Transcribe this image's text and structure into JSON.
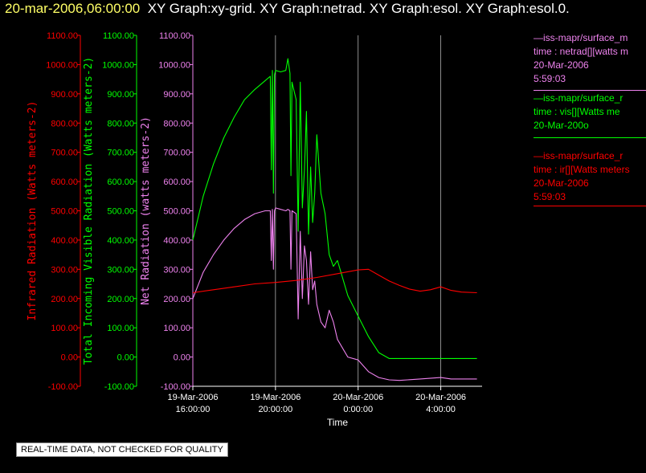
{
  "header": {
    "timestamp": "20-mar-2006,06:00:00",
    "graphs_text": "XY Graph:xy-grid.  XY Graph:netrad.  XY Graph:esol.  XY Graph:esol.0."
  },
  "notice": "REAL-TIME DATA, NOT CHECKED FOR QUALITY",
  "legend": [
    {
      "line1": "—iss-mapr/surface_m",
      "line2": "time : netrad[][watts m",
      "line3": "20-Mar-2006",
      "line4": "5:59:03",
      "color": "#ee82ee"
    },
    {
      "line1": "—iss-mapr/surface_r",
      "line2": "time : vis[][Watts me",
      "line3": "20-Mar-200o",
      "line4": "",
      "color": "#00ff00"
    },
    {
      "line1": "—iss-mapr/surface_r",
      "line2": "time : ir[][Watts meters",
      "line3": "20-Mar-2006",
      "line4": "5:59:03",
      "color": "#ff0000"
    }
  ],
  "colors": {
    "ir": "#ff0000",
    "vis": "#00ff00",
    "net": "#ee82ee",
    "axis_text": "#ffffff",
    "grid": "#b0b0b0"
  },
  "chart_data": {
    "type": "line",
    "xlabel": "Time",
    "x_ticks": [
      {
        "time": "2006-03-19 16:00",
        "label1": "19-Mar-2006",
        "label2": "16:00:00"
      },
      {
        "time": "2006-03-19 20:00",
        "label1": "19-Mar-2006",
        "label2": "20:00:00"
      },
      {
        "time": "2006-03-20 00:00",
        "label1": "20-Mar-2006",
        "label2": "0:00:00"
      },
      {
        "time": "2006-03-20 04:00",
        "label1": "20-Mar-2006",
        "label2": "4:00:00"
      }
    ],
    "xlim": [
      "2006-03-19 16:00",
      "2006-03-20 06:00"
    ],
    "ylim": [
      -100,
      1100
    ],
    "y_ticks": [
      "-100.00",
      "0.00",
      "100.00",
      "200.00",
      "300.00",
      "400.00",
      "500.00",
      "600.00",
      "700.00",
      "800.00",
      "900.00",
      "1000.00",
      "1100.00"
    ],
    "axes": [
      {
        "key": "ir",
        "label": "Infrared Radiation (Watts meters-2)",
        "color": "#ff0000"
      },
      {
        "key": "vis",
        "label": "Total Incoming Visible Radiation (Watts meters-2)",
        "color": "#00ff00"
      },
      {
        "key": "net",
        "label": "Net Radiation (watts meters-2)",
        "color": "#ee82ee"
      }
    ],
    "series": [
      {
        "key": "vis",
        "color": "#00ff00",
        "x": [
          "2006-03-19 16:00",
          "2006-03-19 16:30",
          "2006-03-19 17:00",
          "2006-03-19 17:30",
          "2006-03-19 18:00",
          "2006-03-19 18:30",
          "2006-03-19 19:00",
          "2006-03-19 19:30",
          "2006-03-19 19:45",
          "2006-03-19 19:48",
          "2006-03-19 19:51",
          "2006-03-19 19:54",
          "2006-03-19 19:57",
          "2006-03-19 20:00",
          "2006-03-19 20:15",
          "2006-03-19 20:30",
          "2006-03-19 20:36",
          "2006-03-19 20:42",
          "2006-03-19 20:45",
          "2006-03-19 20:48",
          "2006-03-19 21:00",
          "2006-03-19 21:06",
          "2006-03-19 21:12",
          "2006-03-19 21:18",
          "2006-03-19 21:24",
          "2006-03-19 21:30",
          "2006-03-19 21:36",
          "2006-03-19 21:42",
          "2006-03-19 21:48",
          "2006-03-19 21:54",
          "2006-03-19 22:00",
          "2006-03-19 22:12",
          "2006-03-19 22:24",
          "2006-03-19 22:36",
          "2006-03-19 22:48",
          "2006-03-19 23:00",
          "2006-03-19 23:30",
          "2006-03-20 00:00",
          "2006-03-20 00:30",
          "2006-03-20 01:00",
          "2006-03-20 01:30",
          "2006-03-20 02:00",
          "2006-03-20 03:00",
          "2006-03-20 04:00",
          "2006-03-20 05:00",
          "2006-03-20 05:45"
        ],
        "y": [
          400,
          550,
          660,
          750,
          820,
          880,
          915,
          945,
          960,
          640,
          980,
          560,
          965,
          980,
          975,
          980,
          1020,
          970,
          620,
          940,
          880,
          430,
          940,
          510,
          640,
          840,
          420,
          650,
          460,
          560,
          760,
          560,
          490,
          350,
          310,
          330,
          210,
          140,
          70,
          15,
          -5,
          -5,
          -5,
          -5,
          -5,
          -5
        ]
      },
      {
        "key": "net",
        "color": "#ee82ee",
        "x": [
          "2006-03-19 16:00",
          "2006-03-19 16:30",
          "2006-03-19 17:00",
          "2006-03-19 17:30",
          "2006-03-19 18:00",
          "2006-03-19 18:30",
          "2006-03-19 19:00",
          "2006-03-19 19:30",
          "2006-03-19 19:45",
          "2006-03-19 19:48",
          "2006-03-19 19:51",
          "2006-03-19 19:54",
          "2006-03-19 19:57",
          "2006-03-19 20:00",
          "2006-03-19 20:15",
          "2006-03-19 20:30",
          "2006-03-19 20:36",
          "2006-03-19 20:42",
          "2006-03-19 20:45",
          "2006-03-19 20:48",
          "2006-03-19 21:00",
          "2006-03-19 21:06",
          "2006-03-19 21:12",
          "2006-03-19 21:18",
          "2006-03-19 21:24",
          "2006-03-19 21:30",
          "2006-03-19 21:36",
          "2006-03-19 21:42",
          "2006-03-19 21:48",
          "2006-03-19 21:54",
          "2006-03-19 22:00",
          "2006-03-19 22:12",
          "2006-03-19 22:24",
          "2006-03-19 22:36",
          "2006-03-19 22:48",
          "2006-03-19 23:00",
          "2006-03-19 23:30",
          "2006-03-20 00:00",
          "2006-03-20 00:30",
          "2006-03-20 01:00",
          "2006-03-20 01:30",
          "2006-03-20 02:00",
          "2006-03-20 03:00",
          "2006-03-20 04:00",
          "2006-03-20 04:30",
          "2006-03-20 05:45"
        ],
        "y": [
          200,
          290,
          350,
          400,
          440,
          470,
          490,
          500,
          500,
          330,
          505,
          300,
          500,
          510,
          505,
          500,
          505,
          500,
          300,
          500,
          490,
          130,
          430,
          200,
          380,
          330,
          180,
          360,
          230,
          260,
          180,
          120,
          100,
          160,
          120,
          60,
          0,
          -10,
          -50,
          -70,
          -78,
          -80,
          -75,
          -70,
          -75,
          -75
        ]
      },
      {
        "key": "ir",
        "color": "#ff0000",
        "x": [
          "2006-03-19 16:00",
          "2006-03-19 17:00",
          "2006-03-19 18:00",
          "2006-03-19 19:00",
          "2006-03-19 20:00",
          "2006-03-19 21:00",
          "2006-03-19 22:00",
          "2006-03-19 23:00",
          "2006-03-20 00:00",
          "2006-03-20 00:30",
          "2006-03-20 01:00",
          "2006-03-20 01:30",
          "2006-03-20 02:00",
          "2006-03-20 02:30",
          "2006-03-20 03:00",
          "2006-03-20 03:30",
          "2006-03-20 04:00",
          "2006-03-20 04:30",
          "2006-03-20 05:00",
          "2006-03-20 05:45"
        ],
        "y": [
          220,
          230,
          240,
          250,
          255,
          262,
          272,
          285,
          298,
          300,
          280,
          260,
          245,
          232,
          225,
          230,
          240,
          228,
          222,
          220
        ]
      }
    ]
  }
}
